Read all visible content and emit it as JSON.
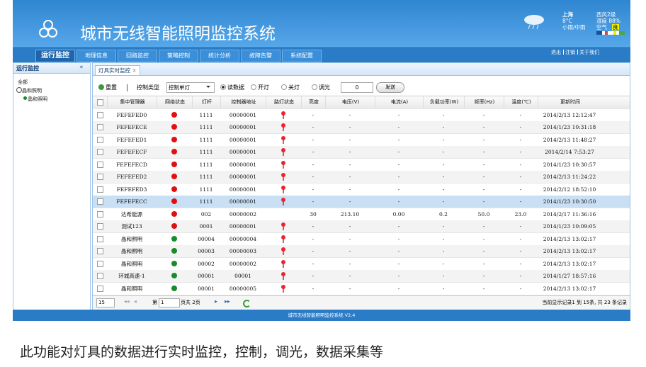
{
  "header": {
    "title": "城市无线智能照明监控系统"
  },
  "weather": {
    "city": "上海",
    "temp": "8°C",
    "condition": "小雨/中雨",
    "wind": "西风2级",
    "humidity": "湿度 88%",
    "air_label": "空气",
    "air": "良"
  },
  "top_links": [
    "退出",
    "注销",
    "关于我们"
  ],
  "nav": {
    "items": [
      "运行监控",
      "地理信息",
      "回路监控",
      "策略控制",
      "统计分析",
      "故障告警",
      "系统配置"
    ],
    "active": 0
  },
  "sidebar": {
    "title": "运行监控",
    "collapse": "«",
    "tree": [
      "全部",
      "晶和照明",
      "晶和照明"
    ]
  },
  "tab": {
    "title": "灯具实时监控",
    "close": "×"
  },
  "toolbar": {
    "reset": "重置",
    "control_type_label": "控制类型",
    "control_type": "控制单灯",
    "radios": [
      "读数据",
      "开灯",
      "关灯",
      "调光"
    ],
    "checked": 0,
    "dim_value": "0",
    "send": "发送"
  },
  "table": {
    "columns": [
      "集中管理器",
      "网络状态",
      "灯杆",
      "控制器地址",
      "路灯状态",
      "亮度",
      "电压(V)",
      "电流(A)",
      "负载功率(W)",
      "频率(Hz)",
      "温度(℃)",
      "更新时间"
    ],
    "selected_row": 7,
    "rows": [
      {
        "manager": "FEFEFED0",
        "net": "#e01010",
        "pole": "1111",
        "address": "00000001",
        "lamp": true,
        "values": [
          "-",
          "-",
          "-",
          "-",
          "-",
          "-"
        ],
        "time": "2014/2/13 12:12:47"
      },
      {
        "manager": "FEFEFECE",
        "net": "#e01010",
        "pole": "1111",
        "address": "00000001",
        "lamp": true,
        "values": [
          "-",
          "-",
          "-",
          "-",
          "-",
          "-"
        ],
        "time": "2014/1/23 10:31:18"
      },
      {
        "manager": "FEFEFED1",
        "net": "#e01010",
        "pole": "1111",
        "address": "00000001",
        "lamp": true,
        "values": [
          "-",
          "-",
          "-",
          "-",
          "-",
          "-"
        ],
        "time": "2014/2/13 11:48:27"
      },
      {
        "manager": "FEFEFECF",
        "net": "#e01010",
        "pole": "1111",
        "address": "00000001",
        "lamp": true,
        "values": [
          "-",
          "-",
          "-",
          "-",
          "-",
          "-"
        ],
        "time": "2014/2/14 7:53:27"
      },
      {
        "manager": "FEFEFECD",
        "net": "#e01010",
        "pole": "1111",
        "address": "00000001",
        "lamp": true,
        "values": [
          "-",
          "-",
          "-",
          "-",
          "-",
          "-"
        ],
        "time": "2014/1/23 10:30:57"
      },
      {
        "manager": "FEFEFED2",
        "net": "#e01010",
        "pole": "1111",
        "address": "00000001",
        "lamp": true,
        "values": [
          "-",
          "-",
          "-",
          "-",
          "-",
          "-"
        ],
        "time": "2014/2/13 11:24:22"
      },
      {
        "manager": "FEFEFED3",
        "net": "#e01010",
        "pole": "1111",
        "address": "00000001",
        "lamp": true,
        "values": [
          "-",
          "-",
          "-",
          "-",
          "-",
          "-"
        ],
        "time": "2014/2/12 18:52:10"
      },
      {
        "manager": "FEFEFECC",
        "net": "#e01010",
        "pole": "1111",
        "address": "00000001",
        "lamp": true,
        "values": [
          "-",
          "-",
          "-",
          "-",
          "-",
          "-"
        ],
        "time": "2014/1/23 10:30:50"
      },
      {
        "manager": "达希能源",
        "net": "#e01010",
        "pole": "002",
        "address": "00000002",
        "lamp": false,
        "values": [
          "30",
          "213.10",
          "0.00",
          "0.2",
          "50.0",
          "23.0"
        ],
        "time": "2014/2/17 11:36:16"
      },
      {
        "manager": "测试123",
        "net": "#e01010",
        "pole": "0001",
        "address": "00000001",
        "lamp": true,
        "values": [
          "-",
          "-",
          "-",
          "-",
          "-",
          "-"
        ],
        "time": "2014/1/23 10:09:05"
      },
      {
        "manager": "晶和照明",
        "net": "#1a8a2a",
        "pole": "00004",
        "address": "00000004",
        "lamp": true,
        "values": [
          "-",
          "-",
          "-",
          "-",
          "-",
          "-"
        ],
        "time": "2014/2/13 13:02:17"
      },
      {
        "manager": "晶和照明",
        "net": "#1a8a2a",
        "pole": "00003",
        "address": "00000003",
        "lamp": true,
        "values": [
          "-",
          "-",
          "-",
          "-",
          "-",
          "-"
        ],
        "time": "2014/2/13 13:02:17"
      },
      {
        "manager": "晶和照明",
        "net": "#1a8a2a",
        "pole": "00002",
        "address": "00000002",
        "lamp": true,
        "values": [
          "-",
          "-",
          "-",
          "-",
          "-",
          "-"
        ],
        "time": "2014/2/13 13:02:17"
      },
      {
        "manager": "环城高速-1",
        "net": "#1a8a2a",
        "pole": "00001",
        "address": "00001",
        "lamp": true,
        "values": [
          "-",
          "-",
          "-",
          "-",
          "-",
          "-"
        ],
        "time": "2014/1/27 18:57:16"
      },
      {
        "manager": "晶和照明",
        "net": "#1a8a2a",
        "pole": "00001",
        "address": "00000005",
        "lamp": true,
        "values": [
          "-",
          "-",
          "-",
          "-",
          "-",
          "-"
        ],
        "time": "2014/2/13 13:02:17"
      }
    ]
  },
  "pager": {
    "page_size": "15",
    "page_prefix": "第",
    "page": "1",
    "page_suffix": "页共 2页",
    "summary": "当前显示记录1 到 15条, 共 23 条记录"
  },
  "footer": "城市无线智能照明监控系统 V2.4",
  "caption": "此功能对灯具的数据进行实时监控，控制，调光，数据采集等"
}
